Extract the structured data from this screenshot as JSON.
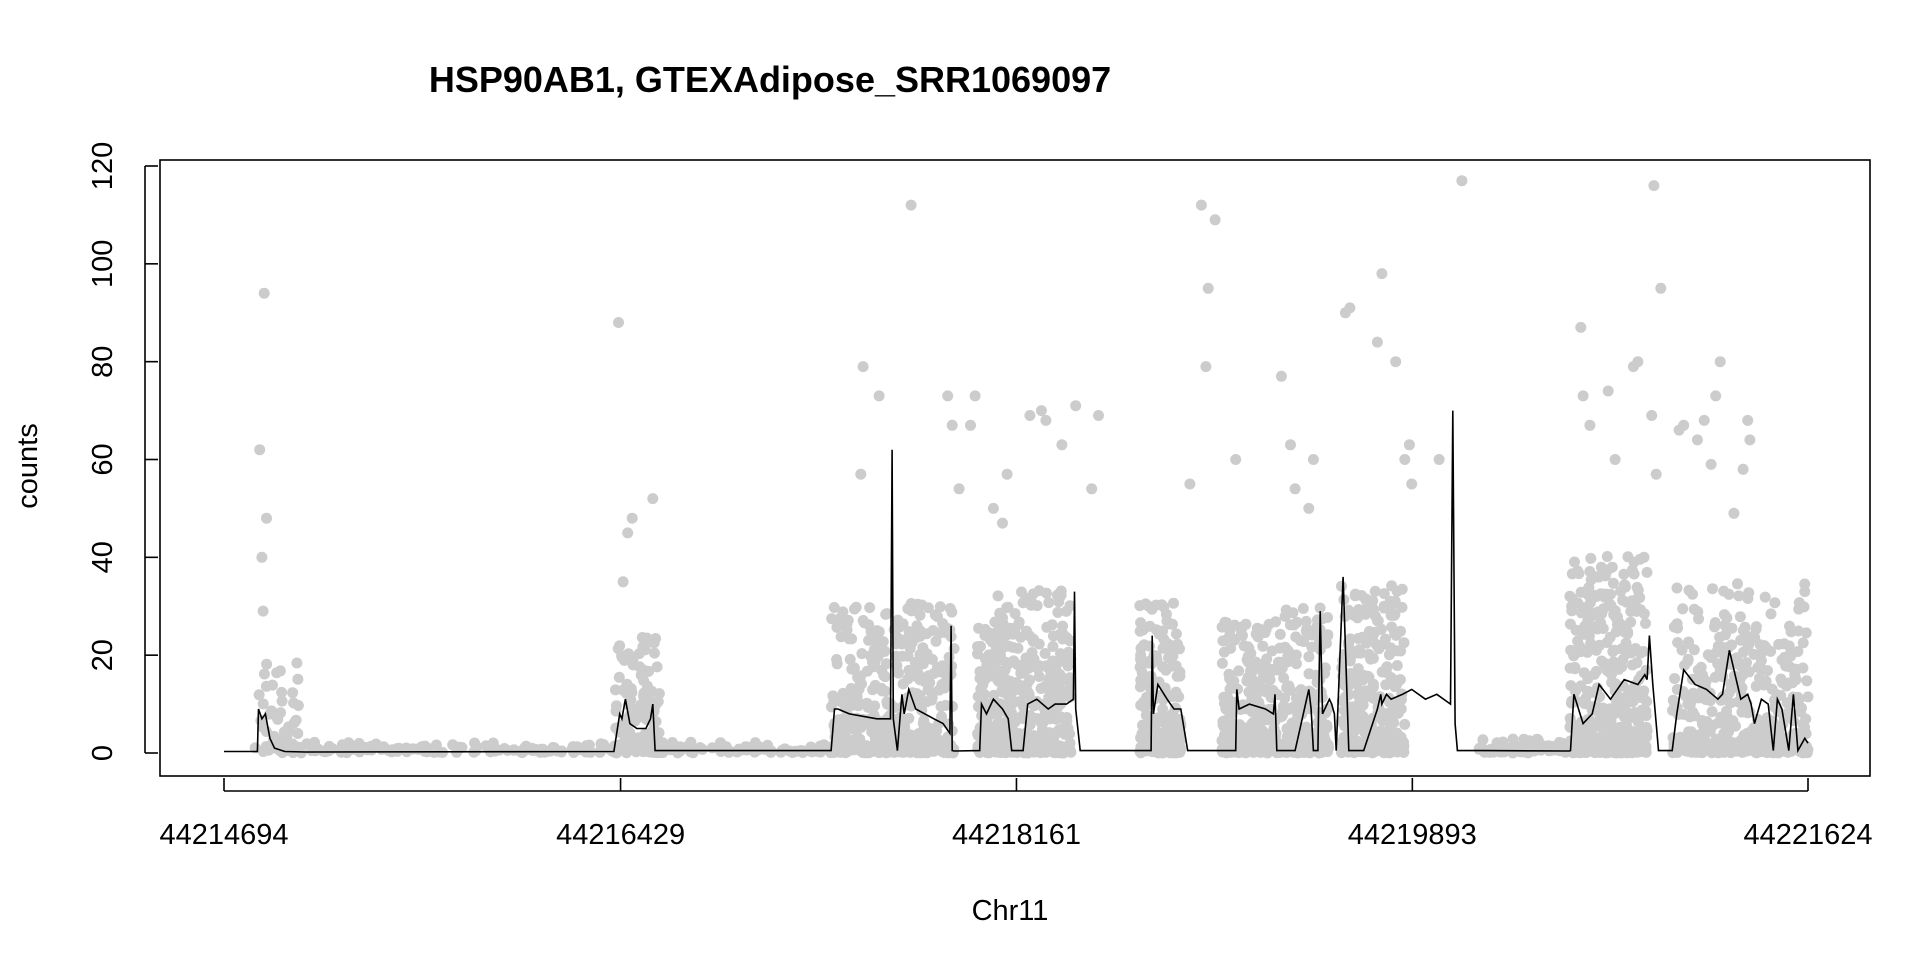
{
  "chart_data": {
    "type": "scatter",
    "title": "HSP90AB1, GTEXAdipose_SRR1069097",
    "xlabel": "Chr11",
    "ylabel": "counts",
    "xlim": [
      44214694,
      44221624
    ],
    "ylim": [
      0,
      120
    ],
    "xticks": [
      44214694,
      44216429,
      44218161,
      44219893,
      44221624
    ],
    "xtick_labels": [
      "44214694",
      "44216429",
      "44218161",
      "44219893",
      "44221624"
    ],
    "yticks": [
      0,
      20,
      40,
      60,
      80,
      100,
      120
    ],
    "ytick_labels": [
      "0",
      "20",
      "40",
      "60",
      "80",
      "100",
      "120"
    ],
    "grid": false,
    "legend": "none",
    "colors": {
      "points": "#cccccc",
      "line": "#000000",
      "axes": "#000000"
    },
    "series": [
      {
        "kind": "points",
        "segments": [
          {
            "x": [
              44214830,
              44215020
            ],
            "mean": 5,
            "spread": 10,
            "n": 60
          },
          {
            "x": [
              44215020,
              44216400
            ],
            "mean": 0.6,
            "spread": 1.2,
            "n": 120
          },
          {
            "x": [
              44216400,
              44216600
            ],
            "mean": 7,
            "spread": 12,
            "n": 160
          },
          {
            "x": [
              44216600,
              44217350
            ],
            "mean": 0.6,
            "spread": 1.2,
            "n": 70
          },
          {
            "x": [
              44217350,
              44217670
            ],
            "mean": 9,
            "spread": 15,
            "n": 300
          },
          {
            "x": [
              44217670,
              44217890
            ],
            "mean": 10,
            "spread": 15,
            "n": 220
          },
          {
            "x": [
              44217990,
              44218150
            ],
            "mean": 9,
            "spread": 13,
            "n": 180
          },
          {
            "x": [
              44218080,
              44218400
            ],
            "mean": 11,
            "spread": 16,
            "n": 380
          },
          {
            "x": [
              44218700,
              44218880
            ],
            "mean": 11,
            "spread": 14,
            "n": 220
          },
          {
            "x": [
              44219060,
              44219290
            ],
            "mean": 9,
            "spread": 13,
            "n": 280
          },
          {
            "x": [
              44219290,
              44219530
            ],
            "mean": 10,
            "spread": 14,
            "n": 260
          },
          {
            "x": [
              44219580,
              44219860
            ],
            "mean": 12,
            "spread": 16,
            "n": 350
          },
          {
            "x": [
              44220180,
              44220580
            ],
            "mean": 0.8,
            "spread": 1.5,
            "n": 90
          },
          {
            "x": [
              44220580,
              44220920
            ],
            "mean": 15,
            "spread": 18,
            "n": 450
          },
          {
            "x": [
              44221030,
              44221624
            ],
            "mean": 12,
            "spread": 16,
            "n": 460
          }
        ],
        "outliers": [
          {
            "x": 44214850,
            "y": 62
          },
          {
            "x": 44214870,
            "y": 94
          },
          {
            "x": 44214880,
            "y": 48
          },
          {
            "x": 44214860,
            "y": 40
          },
          {
            "x": 44214865,
            "y": 29
          },
          {
            "x": 44216420,
            "y": 88
          },
          {
            "x": 44216480,
            "y": 48
          },
          {
            "x": 44216460,
            "y": 45
          },
          {
            "x": 44216570,
            "y": 52
          },
          {
            "x": 44216440,
            "y": 35
          },
          {
            "x": 44217490,
            "y": 79
          },
          {
            "x": 44217560,
            "y": 73
          },
          {
            "x": 44217480,
            "y": 57
          },
          {
            "x": 44217700,
            "y": 112
          },
          {
            "x": 44217860,
            "y": 73
          },
          {
            "x": 44217980,
            "y": 73
          },
          {
            "x": 44217880,
            "y": 67
          },
          {
            "x": 44217960,
            "y": 67
          },
          {
            "x": 44217910,
            "y": 54
          },
          {
            "x": 44218060,
            "y": 50
          },
          {
            "x": 44218120,
            "y": 57
          },
          {
            "x": 44218100,
            "y": 47
          },
          {
            "x": 44218220,
            "y": 69
          },
          {
            "x": 44218270,
            "y": 70
          },
          {
            "x": 44218290,
            "y": 68
          },
          {
            "x": 44218360,
            "y": 63
          },
          {
            "x": 44218420,
            "y": 71
          },
          {
            "x": 44218520,
            "y": 69
          },
          {
            "x": 44218490,
            "y": 54
          },
          {
            "x": 44218920,
            "y": 55
          },
          {
            "x": 44218970,
            "y": 112
          },
          {
            "x": 44219030,
            "y": 109
          },
          {
            "x": 44219000,
            "y": 95
          },
          {
            "x": 44218990,
            "y": 79
          },
          {
            "x": 44219120,
            "y": 60
          },
          {
            "x": 44219320,
            "y": 77
          },
          {
            "x": 44219360,
            "y": 63
          },
          {
            "x": 44219460,
            "y": 60
          },
          {
            "x": 44219380,
            "y": 54
          },
          {
            "x": 44219440,
            "y": 50
          },
          {
            "x": 44219600,
            "y": 90
          },
          {
            "x": 44219620,
            "y": 91
          },
          {
            "x": 44219760,
            "y": 98
          },
          {
            "x": 44219740,
            "y": 84
          },
          {
            "x": 44219820,
            "y": 80
          },
          {
            "x": 44219860,
            "y": 60
          },
          {
            "x": 44219880,
            "y": 63
          },
          {
            "x": 44219890,
            "y": 55
          },
          {
            "x": 44220010,
            "y": 60
          },
          {
            "x": 44220110,
            "y": 117
          },
          {
            "x": 44220630,
            "y": 87
          },
          {
            "x": 44220640,
            "y": 73
          },
          {
            "x": 44220670,
            "y": 67
          },
          {
            "x": 44220750,
            "y": 74
          },
          {
            "x": 44220780,
            "y": 60
          },
          {
            "x": 44220860,
            "y": 79
          },
          {
            "x": 44220880,
            "y": 80
          },
          {
            "x": 44220950,
            "y": 116
          },
          {
            "x": 44220980,
            "y": 95
          },
          {
            "x": 44220940,
            "y": 69
          },
          {
            "x": 44220960,
            "y": 57
          },
          {
            "x": 44221060,
            "y": 66
          },
          {
            "x": 44221080,
            "y": 67
          },
          {
            "x": 44221140,
            "y": 64
          },
          {
            "x": 44221170,
            "y": 68
          },
          {
            "x": 44221220,
            "y": 73
          },
          {
            "x": 44221240,
            "y": 80
          },
          {
            "x": 44221200,
            "y": 59
          },
          {
            "x": 44221360,
            "y": 68
          },
          {
            "x": 44221370,
            "y": 64
          },
          {
            "x": 44221340,
            "y": 58
          },
          {
            "x": 44221300,
            "y": 49
          },
          {
            "x": 44221610,
            "y": 33
          }
        ]
      },
      {
        "kind": "line",
        "x": [
          44214694,
          44214840,
          44214845,
          44214860,
          44214875,
          44214895,
          44214915,
          44214960,
          44215050,
          44216400,
          44216425,
          44216435,
          44216450,
          44216470,
          44216500,
          44216540,
          44216560,
          44216570,
          44216580,
          44217350,
          44217365,
          44217380,
          44217430,
          44217550,
          44217610,
          44217617,
          44217622,
          44217640,
          44217660,
          44217670,
          44217690,
          44217720,
          44217800,
          44217840,
          44217870,
          44217875,
          44217880,
          44217890,
          44218000,
          44218008,
          44218030,
          44218060,
          44218100,
          44218125,
          44218140,
          44218190,
          44218210,
          44218250,
          44218300,
          44218330,
          44218380,
          44218410,
          44218415,
          44218420,
          44218440,
          44218750,
          44218755,
          44218760,
          44218780,
          44218820,
          44218850,
          44218880,
          44218910,
          44219120,
          44219125,
          44219135,
          44219180,
          44219250,
          44219285,
          44219292,
          44219300,
          44219380,
          44219440,
          44219450,
          44219460,
          44219480,
          44219490,
          44219500,
          44219530,
          44219540,
          44219552,
          44219560,
          44219590,
          44219615,
          44219680,
          44219740,
          44219755,
          44219760,
          44219780,
          44219800,
          44219850,
          44219890,
          44219950,
          44220000,
          44220060,
          44220070,
          44220080,
          44220090,
          44220200,
          44220580,
          44220585,
          44220600,
          44220640,
          44220680,
          44220710,
          44220760,
          44220820,
          44220880,
          44220910,
          44220920,
          44220930,
          44220945,
          44220960,
          44220970,
          44220985,
          44221030,
          44221050,
          44221080,
          44221130,
          44221180,
          44221230,
          44221250,
          44221280,
          44221330,
          44221360,
          44221375,
          44221390,
          44221420,
          44221450,
          44221472,
          44221490,
          44221510,
          44221540,
          44221560,
          44221580,
          44221610,
          44221624
        ],
        "y": [
          0.3,
          0.3,
          9,
          7,
          8,
          3,
          1,
          0.3,
          0.2,
          0.3,
          8,
          7,
          11,
          6,
          5,
          5,
          7,
          10,
          0.5,
          0.5,
          9,
          9,
          8,
          7,
          7,
          62,
          7,
          0.5,
          12,
          8,
          13,
          9,
          7,
          6,
          4,
          26,
          0.5,
          0.4,
          0.5,
          10,
          8,
          11,
          9,
          7,
          0.5,
          0.5,
          10,
          11,
          9,
          10,
          10,
          11,
          33,
          9,
          0.5,
          0.5,
          24,
          8,
          14,
          11,
          9,
          9,
          0.5,
          0.5,
          13,
          9,
          10,
          9,
          8,
          12,
          0.5,
          0.5,
          13,
          9,
          0.5,
          0.5,
          29,
          8,
          11,
          10,
          8,
          0.5,
          36,
          0.5,
          0.5,
          9,
          12,
          10,
          12,
          11,
          12,
          13,
          11,
          12,
          10,
          70,
          6,
          0.5,
          0.5,
          0.4,
          0.5,
          12,
          6,
          8,
          14,
          11,
          15,
          14,
          16,
          15,
          24,
          14,
          6,
          0.5,
          0.5,
          0.5,
          8,
          17,
          14,
          13,
          11,
          12,
          21,
          11,
          12,
          10,
          6,
          11,
          10,
          0.5,
          11,
          9,
          0.5,
          12,
          0.5,
          3,
          2
        ]
      }
    ]
  }
}
